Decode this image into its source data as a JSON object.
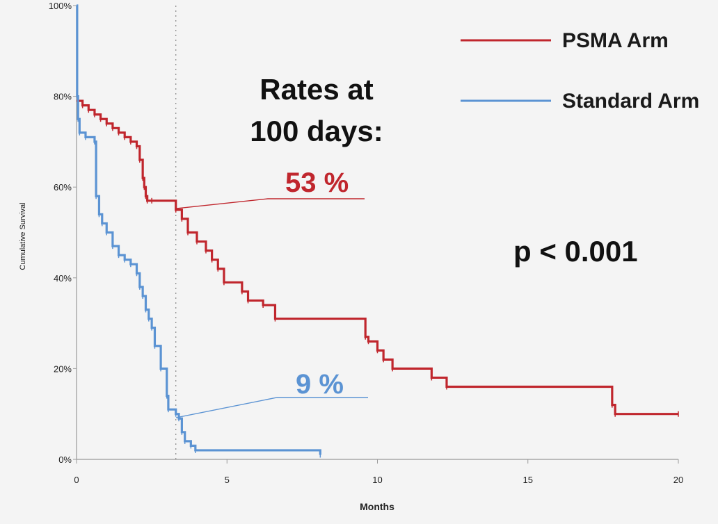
{
  "chart_data": {
    "type": "line",
    "title": "",
    "xlabel": "Months",
    "ylabel": "Cumulative Survival",
    "xlim": [
      0,
      20
    ],
    "ylim": [
      0,
      100
    ],
    "x_ticks": [
      "0",
      "5",
      "10",
      "15",
      "20"
    ],
    "x_tick_values": [
      0,
      5,
      10,
      15,
      20
    ],
    "y_ticks": [
      "0%",
      "20%",
      "40%",
      "60%",
      "80%",
      "100%"
    ],
    "y_tick_values": [
      0,
      20,
      40,
      60,
      80,
      100
    ],
    "grid": false,
    "legend_position": "top-right",
    "reference_line_x": 3.3,
    "series": [
      {
        "name": "PSMA Arm",
        "color": "#c0262d",
        "step": true,
        "x": [
          0,
          0.2,
          0.4,
          0.6,
          0.8,
          1.0,
          1.2,
          1.4,
          1.6,
          1.8,
          2.0,
          2.1,
          2.2,
          2.25,
          2.3,
          2.35,
          2.5,
          3.3,
          3.5,
          3.7,
          4.0,
          4.3,
          4.5,
          4.7,
          4.9,
          5.5,
          5.7,
          6.2,
          6.6,
          9.6,
          9.7,
          10.0,
          10.2,
          10.5,
          11.8,
          12.3,
          17.8,
          17.9,
          20.0
        ],
        "y": [
          79,
          78,
          77,
          76,
          75,
          74,
          73,
          72,
          71,
          70,
          69,
          66,
          62,
          60,
          58,
          57,
          57,
          55,
          53,
          50,
          48,
          46,
          44,
          42,
          39,
          37,
          35,
          34,
          31,
          27,
          26,
          24,
          22,
          20,
          18,
          16,
          12,
          10,
          10
        ]
      },
      {
        "name": "Standard Arm",
        "color": "#5b93d3",
        "step": true,
        "x": [
          0,
          0.02,
          0.05,
          0.1,
          0.3,
          0.6,
          0.65,
          0.75,
          0.85,
          1.0,
          1.2,
          1.4,
          1.6,
          1.8,
          2.0,
          2.1,
          2.2,
          2.3,
          2.4,
          2.5,
          2.6,
          2.8,
          3.0,
          3.05,
          3.3,
          3.4,
          3.5,
          3.6,
          3.8,
          3.95,
          8.1
        ],
        "y": [
          100,
          80,
          75,
          72,
          71,
          70,
          58,
          54,
          52,
          50,
          47,
          45,
          44,
          43,
          41,
          38,
          36,
          33,
          31,
          29,
          25,
          20,
          14,
          11,
          10,
          9,
          6,
          4,
          3,
          2,
          1
        ]
      }
    ],
    "annotations": {
      "rates_line1": "Rates at",
      "rates_line2": "100 days:",
      "psma_rate": "53 %",
      "standard_rate": "9 %",
      "p_value": "p < 0.001"
    }
  }
}
